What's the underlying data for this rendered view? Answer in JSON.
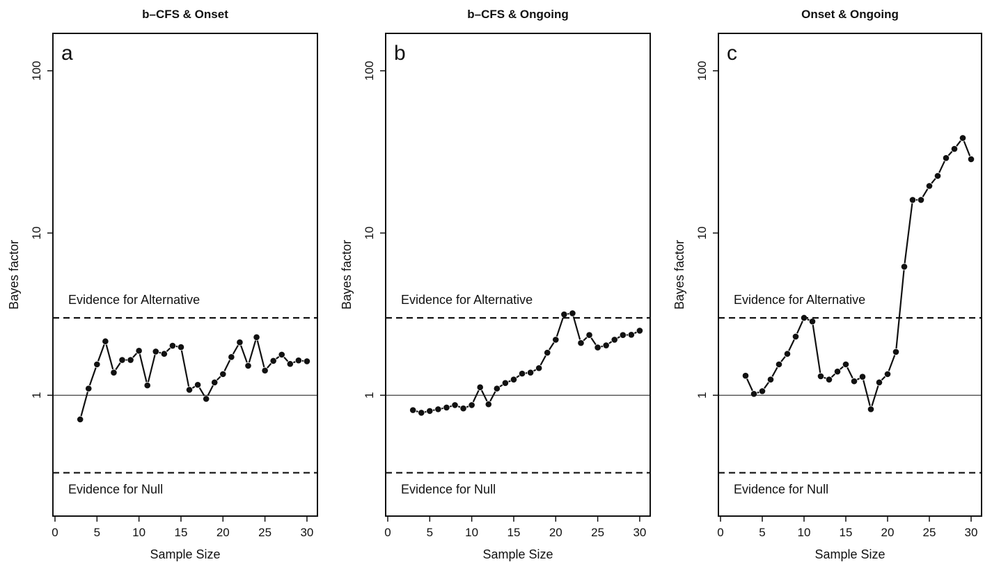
{
  "chart_data": [
    {
      "type": "line",
      "title": "b–CFS & Onset",
      "panel_label": "a",
      "xlabel": "Sample Size",
      "ylabel": "Bayes factor",
      "y_scale": "log",
      "xlim": [
        0,
        31
      ],
      "ylim": [
        0.18,
        170
      ],
      "x_ticks": [
        "0",
        "5",
        "10",
        "15",
        "20",
        "25",
        "30"
      ],
      "y_ticks": [
        "1",
        "10",
        "100"
      ],
      "reference_lines": [
        {
          "value": 3,
          "style": "dashed"
        },
        {
          "value": 1,
          "style": "solid"
        },
        {
          "value": 0.333,
          "style": "dashed"
        }
      ],
      "annotations": {
        "alt": "Evidence for Alternative",
        "null": "Evidence for Null"
      },
      "series": [
        {
          "x": [
            3,
            4,
            5,
            6,
            7,
            8,
            9,
            10,
            11,
            12,
            13,
            14,
            15,
            16,
            17,
            18,
            19,
            20,
            21,
            22,
            23,
            24,
            25,
            26,
            27,
            28,
            29,
            30
          ],
          "y": [
            0.71,
            1.1,
            1.55,
            2.15,
            1.38,
            1.65,
            1.65,
            1.88,
            1.15,
            1.86,
            1.8,
            2.02,
            1.98,
            1.08,
            1.16,
            0.95,
            1.2,
            1.35,
            1.72,
            2.12,
            1.52,
            2.28,
            1.42,
            1.63,
            1.78,
            1.56,
            1.64,
            1.62
          ]
        }
      ]
    },
    {
      "type": "line",
      "title": "b–CFS & Ongoing",
      "panel_label": "b",
      "xlabel": "Sample Size",
      "ylabel": "Bayes factor",
      "y_scale": "log",
      "xlim": [
        0,
        31
      ],
      "ylim": [
        0.18,
        170
      ],
      "x_ticks": [
        "0",
        "5",
        "10",
        "15",
        "20",
        "25",
        "30"
      ],
      "y_ticks": [
        "1",
        "10",
        "100"
      ],
      "reference_lines": [
        {
          "value": 3,
          "style": "dashed"
        },
        {
          "value": 1,
          "style": "solid"
        },
        {
          "value": 0.333,
          "style": "dashed"
        }
      ],
      "annotations": {
        "alt": "Evidence for Alternative",
        "null": "Evidence for Null"
      },
      "series": [
        {
          "x": [
            3,
            4,
            5,
            6,
            7,
            8,
            9,
            10,
            11,
            12,
            13,
            14,
            15,
            16,
            17,
            18,
            19,
            20,
            21,
            22,
            23,
            24,
            25,
            26,
            27,
            28,
            29,
            30
          ],
          "y": [
            0.81,
            0.78,
            0.8,
            0.82,
            0.84,
            0.87,
            0.83,
            0.87,
            1.12,
            0.88,
            1.1,
            1.19,
            1.25,
            1.36,
            1.38,
            1.47,
            1.83,
            2.2,
            3.15,
            3.2,
            2.1,
            2.35,
            1.97,
            2.03,
            2.2,
            2.35,
            2.36,
            2.5
          ]
        }
      ]
    },
    {
      "type": "line",
      "title": "Onset & Ongoing",
      "panel_label": "c",
      "xlabel": "Sample Size",
      "ylabel": "Bayes factor",
      "y_scale": "log",
      "xlim": [
        0,
        31
      ],
      "ylim": [
        0.18,
        170
      ],
      "x_ticks": [
        "0",
        "5",
        "10",
        "15",
        "20",
        "25",
        "30"
      ],
      "y_ticks": [
        "1",
        "10",
        "100"
      ],
      "reference_lines": [
        {
          "value": 3,
          "style": "dashed"
        },
        {
          "value": 1,
          "style": "solid"
        },
        {
          "value": 0.333,
          "style": "dashed"
        }
      ],
      "annotations": {
        "alt": "Evidence for Alternative",
        "null": "Evidence for Null"
      },
      "series": [
        {
          "x": [
            3,
            4,
            5,
            6,
            7,
            8,
            9,
            10,
            11,
            12,
            13,
            14,
            15,
            16,
            17,
            18,
            19,
            20,
            21,
            22,
            23,
            24,
            25,
            26,
            27,
            28,
            29,
            30
          ],
          "y": [
            1.32,
            1.02,
            1.06,
            1.25,
            1.55,
            1.8,
            2.3,
            3.0,
            2.85,
            1.31,
            1.25,
            1.4,
            1.55,
            1.22,
            1.3,
            0.82,
            1.2,
            1.35,
            1.85,
            6.2,
            16.0,
            16.0,
            19.5,
            22.5,
            29.0,
            33.0,
            38.5,
            28.5
          ]
        }
      ]
    }
  ]
}
